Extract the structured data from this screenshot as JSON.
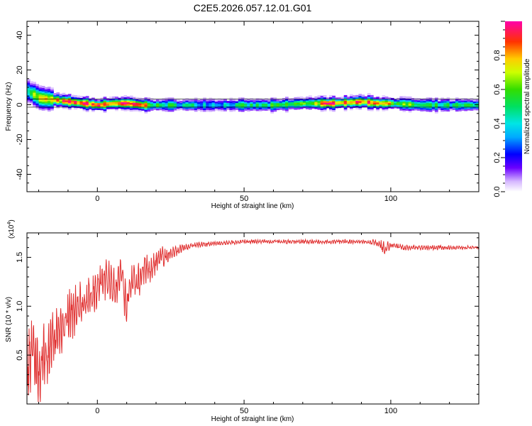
{
  "page_title": "C2E5.2026.057.12.01.G01",
  "chart_data": [
    {
      "type": "heatmap",
      "xlabel": "Height of straight line (km)",
      "ylabel": "Frequency (Hz)",
      "xlim": [
        -24,
        130
      ],
      "ylim": [
        -50,
        48
      ],
      "xticks": [
        0,
        50,
        100
      ],
      "yticks": [
        -40,
        -20,
        0,
        20,
        40
      ],
      "colorbar": {
        "label": "Normalized spectral amplitude",
        "range": [
          0,
          1
        ],
        "ticks": [
          "0.0",
          "0.2",
          "0.4",
          "0.6",
          "0.8"
        ]
      },
      "ridge": {
        "x": [
          -24,
          -20,
          -15,
          -10,
          -5,
          0,
          5,
          10,
          15,
          20,
          30,
          40,
          50,
          60,
          70,
          80,
          90,
          95,
          100,
          110,
          120,
          130
        ],
        "freq": [
          8,
          4,
          3,
          2,
          1,
          0,
          1,
          1,
          0,
          0,
          0,
          0,
          0,
          0,
          1,
          1,
          2,
          1,
          1,
          0,
          0,
          0
        ],
        "amplitude": [
          0.6,
          0.7,
          0.75,
          0.9,
          0.95,
          0.9,
          0.85,
          0.9,
          0.9,
          0.5,
          0.45,
          0.4,
          0.45,
          0.5,
          0.6,
          0.95,
          0.85,
          0.95,
          0.7,
          0.5,
          0.45,
          0.5
        ]
      }
    },
    {
      "type": "line",
      "xlabel": "Height of straight line (km)",
      "ylabel": "SNR (10 * v/v)",
      "y_multiplier": "(x10",
      "y_multiplier_exp": "4",
      "y_multiplier_close": ")",
      "xlim": [
        -24,
        130
      ],
      "ylim": [
        0,
        1.75
      ],
      "xticks": [
        0,
        50,
        100
      ],
      "yticks": [
        "0.5",
        "1.0",
        "1.5"
      ],
      "line_color": "#e03030",
      "series_anchor": {
        "x": [
          -24,
          -22,
          -20,
          -18,
          -16,
          -14,
          -12,
          -10,
          -8,
          -6,
          -4,
          -2,
          0,
          2,
          4,
          6,
          8,
          10,
          12,
          14,
          16,
          18,
          20,
          22,
          24,
          26,
          28,
          30,
          32,
          35,
          40,
          45,
          50,
          60,
          70,
          80,
          90,
          95,
          98,
          100,
          105,
          110,
          120,
          130
        ],
        "y": [
          0.4,
          0.6,
          0.3,
          0.5,
          0.6,
          0.7,
          0.8,
          0.9,
          0.95,
          1.0,
          1.05,
          1.1,
          1.2,
          1.25,
          1.3,
          1.15,
          1.35,
          1.0,
          1.3,
          1.25,
          1.4,
          1.35,
          1.45,
          1.5,
          1.52,
          1.55,
          1.58,
          1.6,
          1.62,
          1.63,
          1.64,
          1.65,
          1.66,
          1.66,
          1.66,
          1.66,
          1.66,
          1.65,
          1.58,
          1.62,
          1.6,
          1.6,
          1.6,
          1.6
        ]
      },
      "noise_amplitude_anchor": {
        "x": [
          -24,
          -10,
          0,
          10,
          20,
          25,
          30,
          40,
          90,
          95,
          98,
          100,
          130
        ],
        "a": [
          0.35,
          0.25,
          0.18,
          0.2,
          0.12,
          0.07,
          0.03,
          0.02,
          0.02,
          0.03,
          0.08,
          0.03,
          0.015
        ]
      }
    }
  ]
}
